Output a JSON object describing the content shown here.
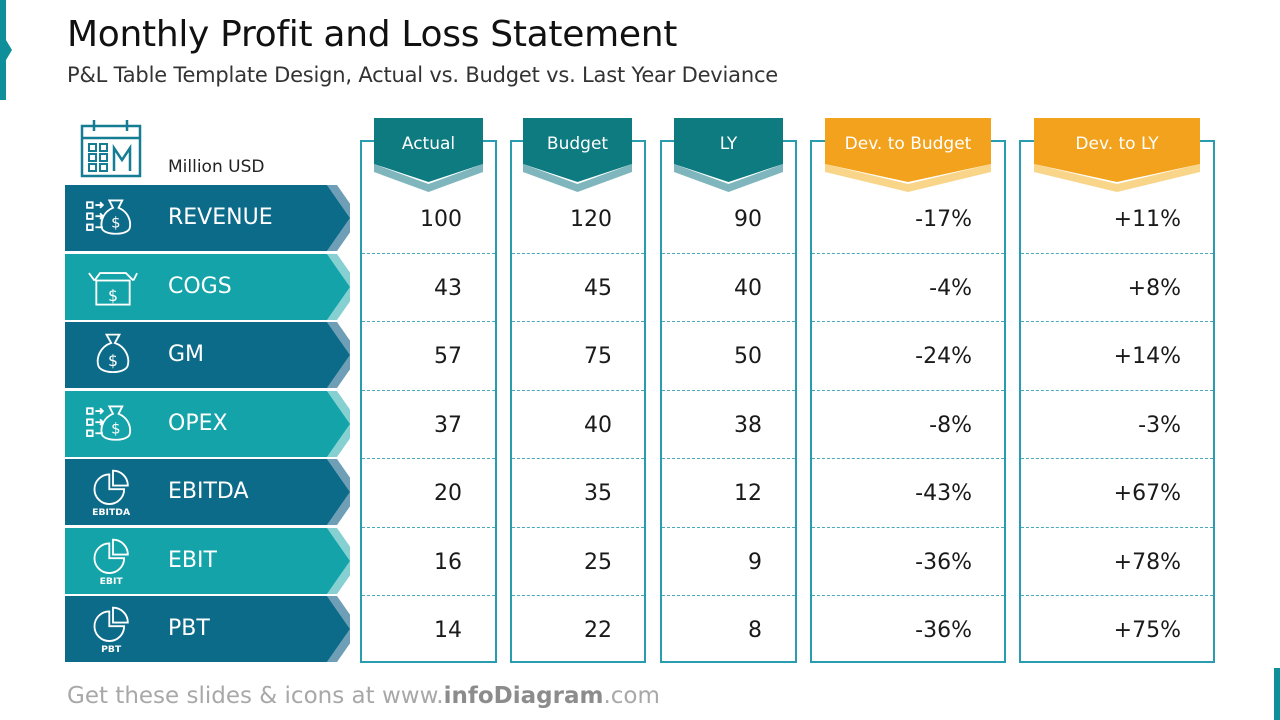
{
  "header": {
    "title": "Monthly Profit and Loss Statement",
    "subtitle": "P&L Table Template Design, Actual vs. Budget vs. Last Year Deviance"
  },
  "unit": "Million USD",
  "columns": [
    "Actual",
    "Budget",
    "LY",
    "Dev. to Budget",
    "Dev. to LY"
  ],
  "rows": [
    {
      "label": "REVENUE",
      "icon": "money-bag-list-icon",
      "values": [
        "100",
        "120",
        "90",
        "-17%",
        "+11%"
      ]
    },
    {
      "label": "COGS",
      "icon": "open-box-dollar-icon",
      "values": [
        "43",
        "45",
        "40",
        "-4%",
        "+8%"
      ]
    },
    {
      "label": "GM",
      "icon": "money-bag-icon",
      "values": [
        "57",
        "75",
        "50",
        "-24%",
        "+14%"
      ]
    },
    {
      "label": "OPEX",
      "icon": "money-bag-list-icon",
      "values": [
        "37",
        "40",
        "38",
        "-8%",
        "-3%"
      ]
    },
    {
      "label": "EBITDA",
      "icon": "pie-chart-icon",
      "icon_caption": "EBITDA",
      "values": [
        "20",
        "35",
        "12",
        "-43%",
        "+67%"
      ]
    },
    {
      "label": "EBIT",
      "icon": "pie-chart-icon",
      "icon_caption": "EBIT",
      "values": [
        "16",
        "25",
        "9",
        "-36%",
        "+78%"
      ]
    },
    {
      "label": "PBT",
      "icon": "pie-chart-icon",
      "icon_caption": "PBT",
      "values": [
        "14",
        "22",
        "8",
        "-36%",
        "+75%"
      ]
    }
  ],
  "footer": {
    "prefix": "Get these slides & icons at www.",
    "brand": "infoDiagram",
    "suffix": ".com"
  },
  "colors": {
    "dark_row": "#0d6b8a",
    "light_row": "#13a3a8",
    "teal_header": "#0e7b80",
    "orange_header": "#f2a21c",
    "frame": "#2a9cb0"
  }
}
